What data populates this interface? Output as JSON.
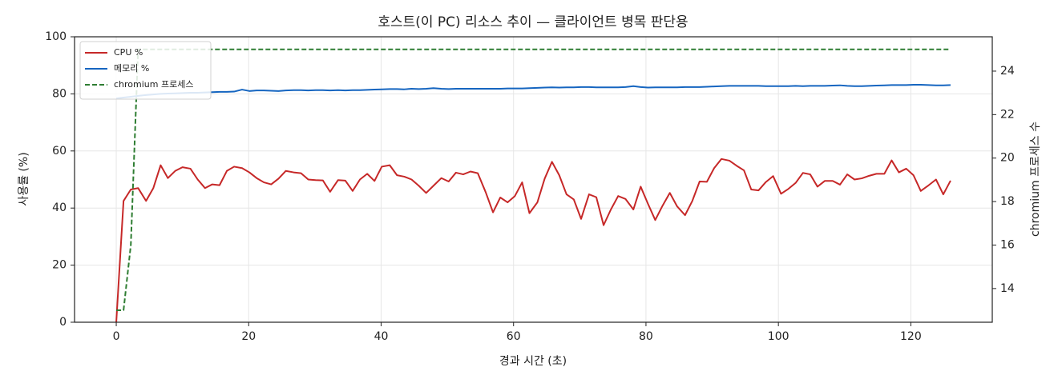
{
  "chart_data": {
    "type": "line",
    "title": "호스트(이 PC) 리소스 추이 — 클라이언트 병목 판단용",
    "xlabel": "경과 시간 (초)",
    "ylabel": "사용률 (%)",
    "y2label": "chromium 프로세스 수",
    "xlim": [
      -6.3,
      132.3
    ],
    "ylim": [
      0,
      100
    ],
    "y2lim": [
      12.45,
      25.58
    ],
    "xticks": [
      0,
      20,
      40,
      60,
      80,
      100,
      120
    ],
    "yticks": [
      0,
      20,
      40,
      60,
      80,
      100
    ],
    "y2ticks": [
      14,
      16,
      18,
      20,
      22,
      24
    ],
    "grid": true,
    "legend": "upper left",
    "x": [
      0,
      1.1,
      2.2,
      3.3,
      4.5,
      5.6,
      6.7,
      7.8,
      8.9,
      10.0,
      11.2,
      12.3,
      13.4,
      14.5,
      15.6,
      16.7,
      17.8,
      19.0,
      20.1,
      21.2,
      22.3,
      23.4,
      24.5,
      25.6,
      26.8,
      27.9,
      29.0,
      30.1,
      31.2,
      32.3,
      33.5,
      34.6,
      35.7,
      36.8,
      37.9,
      39.0,
      40.1,
      41.3,
      42.4,
      43.5,
      44.6,
      45.7,
      46.8,
      47.9,
      49.1,
      50.2,
      51.3,
      52.4,
      53.5,
      54.6,
      55.8,
      56.9,
      58.0,
      59.1,
      60.2,
      61.3,
      62.4,
      63.6,
      64.7,
      65.8,
      66.9,
      68.0,
      69.1,
      70.2,
      71.4,
      72.5,
      73.6,
      74.7,
      75.8,
      76.9,
      78.1,
      79.2,
      80.3,
      81.4,
      82.5,
      83.6,
      84.7,
      85.9,
      87.0,
      88.1,
      89.2,
      90.3,
      91.4,
      92.6,
      93.7,
      94.8,
      95.9,
      97.0,
      98.1,
      99.2,
      100.4,
      101.5,
      102.6,
      103.7,
      104.8,
      105.9,
      107.0,
      108.2,
      109.3,
      110.4,
      111.5,
      112.6,
      113.7,
      114.8,
      116.0,
      117.1,
      118.2,
      119.3,
      120.4,
      121.5,
      122.7,
      123.8,
      124.9,
      126.0
    ],
    "series": [
      {
        "name": "CPU %",
        "color": "#c62828",
        "dashed": false,
        "values": [
          0,
          42.5,
          46.5,
          47,
          42.5,
          47,
          55,
          50.5,
          53,
          54.3,
          53.8,
          50,
          47,
          48.3,
          48,
          53,
          54.5,
          54,
          52.5,
          50.5,
          49,
          48.3,
          50.3,
          53,
          52.5,
          52.2,
          50,
          49.8,
          49.7,
          45.7,
          49.8,
          49.6,
          46,
          50,
          52,
          49.5,
          54.5,
          55,
          51.5,
          51,
          50,
          47.8,
          45.3,
          47.8,
          50.5,
          49.3,
          52.4,
          51.8,
          52.8,
          52.2,
          45.5,
          38.5,
          43.7,
          42,
          44.2,
          49,
          38.2,
          42,
          50.3,
          56.2,
          51.5,
          44.8,
          43,
          36.2,
          44.8,
          43.8,
          34,
          39.5,
          44.2,
          43.2,
          39.5,
          47.5,
          41.5,
          35.8,
          40.8,
          45.3,
          40.6,
          37.5,
          42.5,
          49.3,
          49.2,
          54,
          57.2,
          56.6,
          54.8,
          53.2,
          46.5,
          46.2,
          49.1,
          51.2,
          45,
          46.7,
          48.8,
          52.3,
          51.8,
          47.5,
          49.5,
          49.5,
          48.2,
          51.8,
          50,
          50.4,
          51.3,
          52,
          52,
          56.7,
          52.5,
          53.8,
          51.5,
          46,
          48,
          50,
          44.8,
          49.6
        ]
      },
      {
        "name": "메모리 %",
        "color": "#1565c0",
        "dashed": false,
        "values": [
          78.4,
          78.7,
          79.0,
          79.3,
          79.6,
          79.8,
          80.0,
          80.1,
          80.2,
          80.3,
          80.4,
          80.4,
          80.5,
          80.6,
          80.7,
          80.7,
          80.8,
          81.5,
          81.0,
          81.2,
          81.2,
          81.1,
          81.0,
          81.2,
          81.3,
          81.3,
          81.2,
          81.3,
          81.3,
          81.2,
          81.3,
          81.2,
          81.3,
          81.3,
          81.4,
          81.5,
          81.6,
          81.7,
          81.7,
          81.6,
          81.8,
          81.7,
          81.8,
          82.0,
          81.8,
          81.7,
          81.8,
          81.8,
          81.8,
          81.8,
          81.8,
          81.8,
          81.8,
          81.9,
          81.9,
          81.9,
          82.0,
          82.1,
          82.2,
          82.3,
          82.2,
          82.3,
          82.3,
          82.4,
          82.4,
          82.3,
          82.3,
          82.3,
          82.3,
          82.4,
          82.7,
          82.4,
          82.2,
          82.3,
          82.3,
          82.3,
          82.3,
          82.4,
          82.4,
          82.4,
          82.5,
          82.6,
          82.7,
          82.8,
          82.8,
          82.8,
          82.8,
          82.8,
          82.7,
          82.7,
          82.7,
          82.7,
          82.8,
          82.7,
          82.8,
          82.8,
          82.8,
          82.9,
          83.0,
          82.8,
          82.7,
          82.7,
          82.8,
          82.9,
          83.0,
          83.1,
          83.1,
          83.1,
          83.2,
          83.2,
          83.1,
          83.0,
          83.0,
          83.1
        ]
      },
      {
        "name": "chromium 프로세스",
        "color": "#2e7d32",
        "dashed": true,
        "axis": "y2",
        "values": [
          13,
          13,
          16,
          25,
          25,
          25,
          25,
          25,
          25,
          25,
          25,
          25,
          25,
          25,
          25,
          25,
          25,
          25,
          25,
          25,
          25,
          25,
          25,
          25,
          25,
          25,
          25,
          25,
          25,
          25,
          25,
          25,
          25,
          25,
          25,
          25,
          25,
          25,
          25,
          25,
          25,
          25,
          25,
          25,
          25,
          25,
          25,
          25,
          25,
          25,
          25,
          25,
          25,
          25,
          25,
          25,
          25,
          25,
          25,
          25,
          25,
          25,
          25,
          25,
          25,
          25,
          25,
          25,
          25,
          25,
          25,
          25,
          25,
          25,
          25,
          25,
          25,
          25,
          25,
          25,
          25,
          25,
          25,
          25,
          25,
          25,
          25,
          25,
          25,
          25,
          25,
          25,
          25,
          25,
          25,
          25,
          25,
          25,
          25,
          25,
          25,
          25,
          25,
          25,
          25,
          25,
          25,
          25,
          25,
          25,
          25,
          25,
          25,
          25
        ]
      }
    ]
  }
}
